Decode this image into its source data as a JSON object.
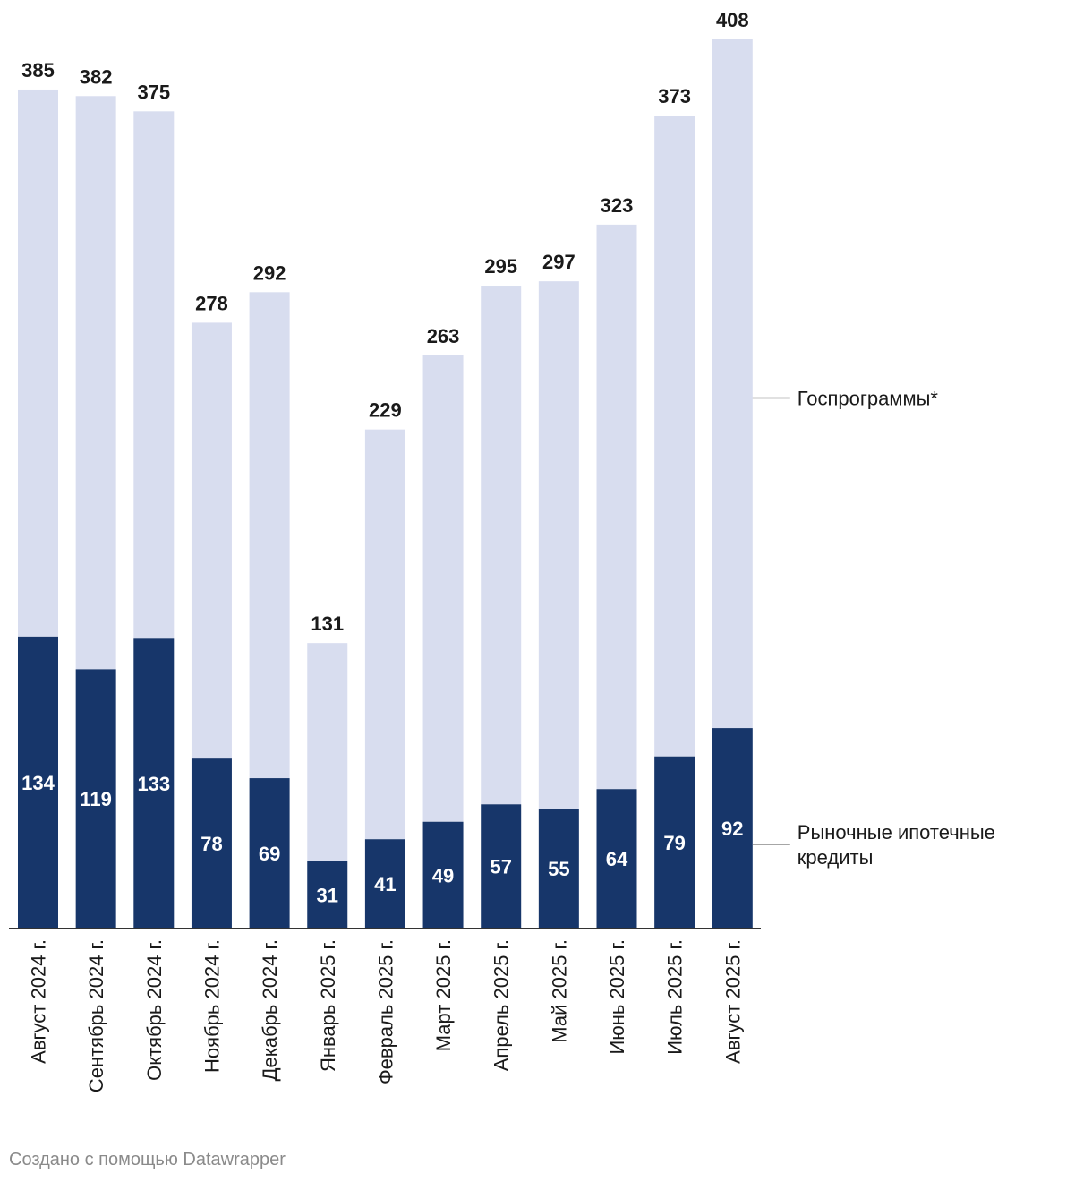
{
  "chart_data": {
    "type": "bar",
    "stacked": true,
    "categories": [
      "Август 2024 г.",
      "Сентябрь 2024 г.",
      "Октябрь 2024 г.",
      "Ноябрь 2024 г.",
      "Декабрь 2024 г.",
      "Январь 2025 г.",
      "Февраль 2025 г.",
      "Март 2025 г.",
      "Апрель 2025 г.",
      "Май 2025 г.",
      "Июнь 2025 г.",
      "Июль 2025 г.",
      "Август 2025 г."
    ],
    "series": [
      {
        "name": "Рыночные ипотечные кредиты",
        "color": "#17366a",
        "values": [
          134,
          119,
          133,
          78,
          69,
          31,
          41,
          49,
          57,
          55,
          64,
          79,
          92
        ]
      },
      {
        "name": "Госпрограммы*",
        "color": "#d8ddef",
        "values": [
          251,
          263,
          242,
          200,
          223,
          100,
          188,
          214,
          238,
          242,
          259,
          294,
          316
        ]
      }
    ],
    "totals": [
      385,
      382,
      375,
      278,
      292,
      131,
      229,
      263,
      295,
      297,
      323,
      373,
      408
    ],
    "ylim": [
      0,
      408
    ],
    "grid": false,
    "legend_placement": "right, inline labels"
  },
  "footer": {
    "credit": "Создано с помощью Datawrapper"
  }
}
